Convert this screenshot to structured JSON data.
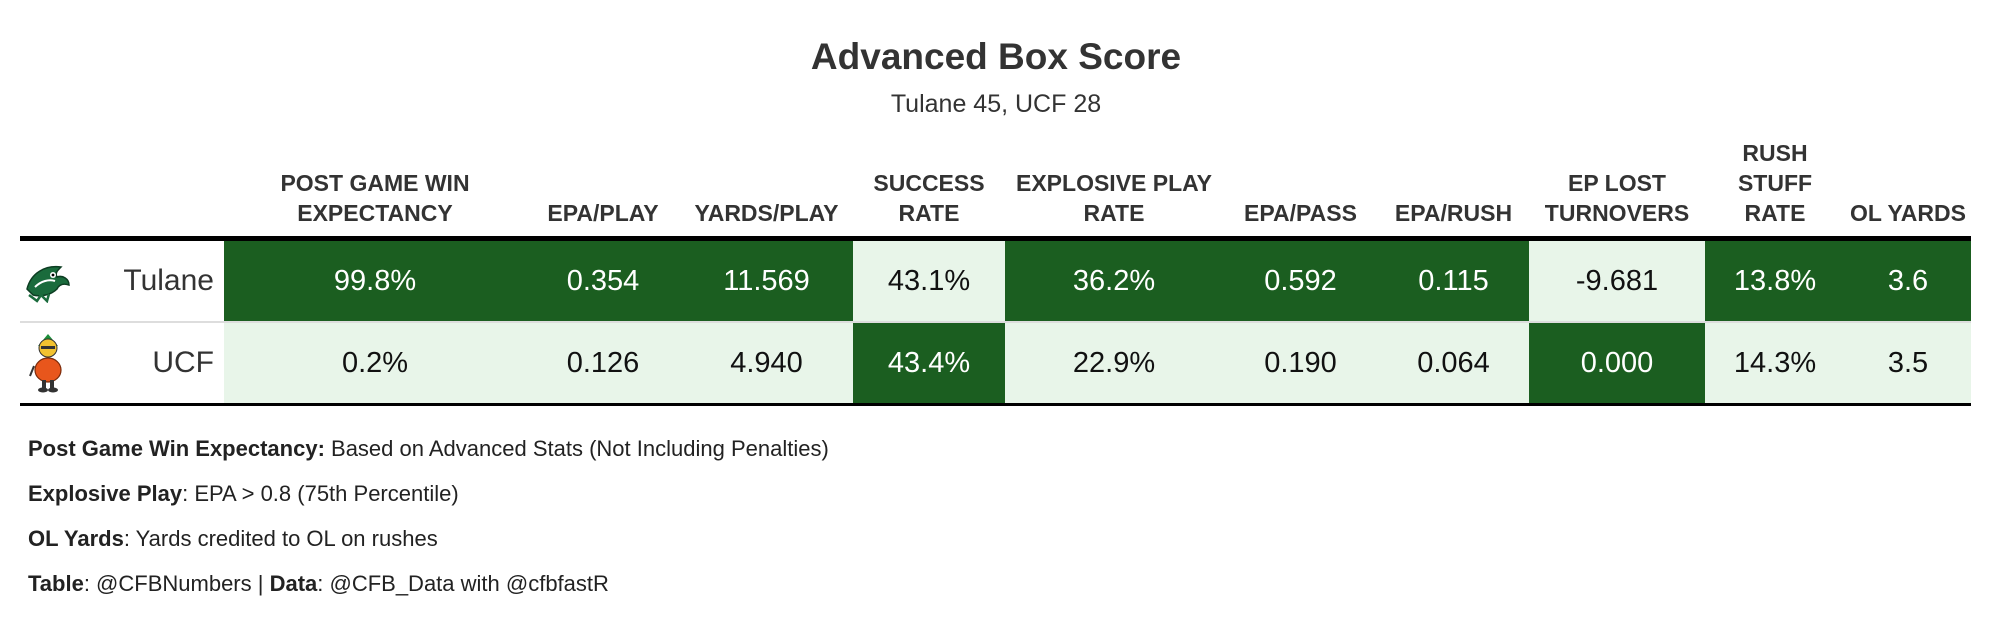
{
  "title": "Advanced Box Score",
  "subtitle": "Tulane 45, UCF 28",
  "chart_data": {
    "type": "table",
    "title": "Advanced Box Score",
    "subtitle": "Tulane 45, UCF 28",
    "columns": [
      {
        "key": "wp",
        "label": "POST GAME WIN EXPECTANCY"
      },
      {
        "key": "epa_play",
        "label": "EPA/PLAY"
      },
      {
        "key": "yds_play",
        "label": "YARDS/PLAY"
      },
      {
        "key": "success",
        "label": "SUCCESS RATE"
      },
      {
        "key": "explosive",
        "label": "EXPLOSIVE PLAY RATE"
      },
      {
        "key": "epa_pass",
        "label": "EPA/PASS"
      },
      {
        "key": "epa_rush",
        "label": "EPA/RUSH"
      },
      {
        "key": "ep_lost",
        "label": "EP LOST TURNOVERS"
      },
      {
        "key": "stuff",
        "label": "RUSH STUFF RATE"
      },
      {
        "key": "ol",
        "label": "OL YARDS"
      }
    ],
    "rows": [
      {
        "team": "Tulane",
        "logo": "tulane-green-wave-logo",
        "values": [
          "99.8%",
          "0.354",
          "11.569",
          "43.1%",
          "36.2%",
          "0.592",
          "0.115",
          "-9.681",
          "13.8%",
          "3.6"
        ],
        "highlight": [
          true,
          true,
          true,
          false,
          true,
          true,
          true,
          false,
          true,
          true
        ]
      },
      {
        "team": "UCF",
        "logo": "ucf-knights-mascot-logo",
        "values": [
          "0.2%",
          "0.126",
          "4.940",
          "43.4%",
          "22.9%",
          "0.190",
          "0.064",
          "0.000",
          "14.3%",
          "3.5"
        ],
        "highlight": [
          false,
          false,
          false,
          true,
          false,
          false,
          false,
          true,
          false,
          false
        ]
      }
    ],
    "colors": {
      "highlight": "#1b5e20",
      "other": "#e8f5e9"
    }
  },
  "notes": [
    {
      "label": "Post Game Win Expectancy:",
      "text": " Based on Advanced Stats (Not Including Penalties)"
    },
    {
      "label": "Explosive Play",
      "text": ": EPA > 0.8 (75th Percentile)"
    },
    {
      "label": "OL Yards",
      "text": ": Yards credited to OL on rushes"
    },
    {
      "label": "Table",
      "text": ": @CFBNumbers | ",
      "label2": "Data",
      "text2": ": @CFB_Data with @cfbfastR"
    }
  ]
}
